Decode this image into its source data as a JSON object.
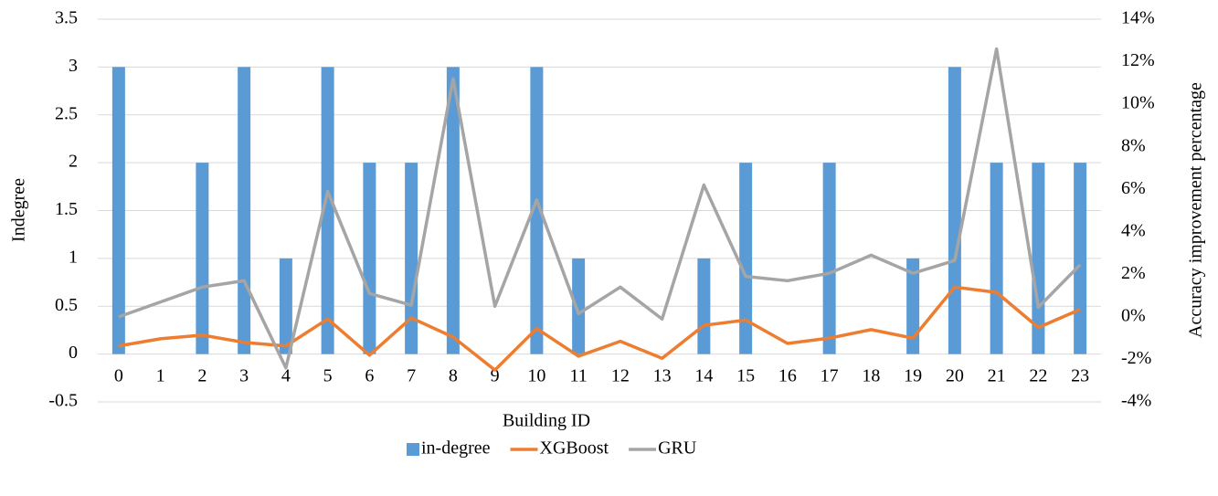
{
  "chart_data": {
    "type": "bar_line",
    "x_label": "Building ID",
    "y_label": "Indegree",
    "y2_label": "Accuracy improvement percentage",
    "categories": [
      "0",
      "1",
      "2",
      "3",
      "4",
      "5",
      "6",
      "7",
      "8",
      "9",
      "10",
      "11",
      "12",
      "13",
      "14",
      "15",
      "16",
      "17",
      "18",
      "19",
      "20",
      "21",
      "22",
      "23"
    ],
    "series": [
      {
        "name": "in-degree",
        "type": "bar",
        "color": "#5b9bd5",
        "values": [
          3,
          0,
          2,
          3,
          1,
          3,
          2,
          2,
          3,
          0,
          3,
          1,
          0,
          0,
          1,
          2,
          0,
          2,
          0,
          1,
          3,
          2,
          2,
          2
        ]
      },
      {
        "name": "XGBoost",
        "type": "line",
        "axis": "y2",
        "color": "#ed7d31",
        "values": [
          -1.37,
          -1.03,
          -0.86,
          -1.2,
          -1.37,
          -0.1,
          -1.8,
          -0.05,
          -0.95,
          -2.5,
          -0.55,
          -1.85,
          -1.15,
          -1.95,
          -0.4,
          -0.15,
          -1.25,
          -1.0,
          -0.6,
          -1.0,
          1.4,
          1.15,
          -0.5,
          0.35
        ]
      },
      {
        "name": "GRU",
        "type": "line",
        "axis": "y2",
        "color": "#a5a5a5",
        "values": [
          0,
          0.7,
          1.4,
          1.7,
          -2.4,
          5.9,
          1.1,
          0.55,
          11.2,
          0.5,
          5.5,
          0.15,
          1.4,
          -0.1,
          6.2,
          1.9,
          1.7,
          2.05,
          2.9,
          2.05,
          2.65,
          12.6,
          0.45,
          2.45
        ]
      }
    ],
    "ylim": [
      -0.5,
      3.5
    ],
    "yticks": [
      -0.5,
      0,
      0.5,
      1,
      1.5,
      2,
      2.5,
      3,
      3.5
    ],
    "y2lim": [
      -4,
      14
    ],
    "y2ticks": [
      {
        "value": -4,
        "label": "-4%"
      },
      {
        "value": -2,
        "label": "-2%"
      },
      {
        "value": 0,
        "label": "0%"
      },
      {
        "value": 2,
        "label": "2%"
      },
      {
        "value": 4,
        "label": "4%"
      },
      {
        "value": 6,
        "label": "6%"
      },
      {
        "value": 8,
        "label": "8%"
      },
      {
        "value": 10,
        "label": "10%"
      },
      {
        "value": 12,
        "label": "12%"
      },
      {
        "value": 14,
        "label": "14%"
      }
    ],
    "grid": true,
    "legend": "bottom"
  }
}
